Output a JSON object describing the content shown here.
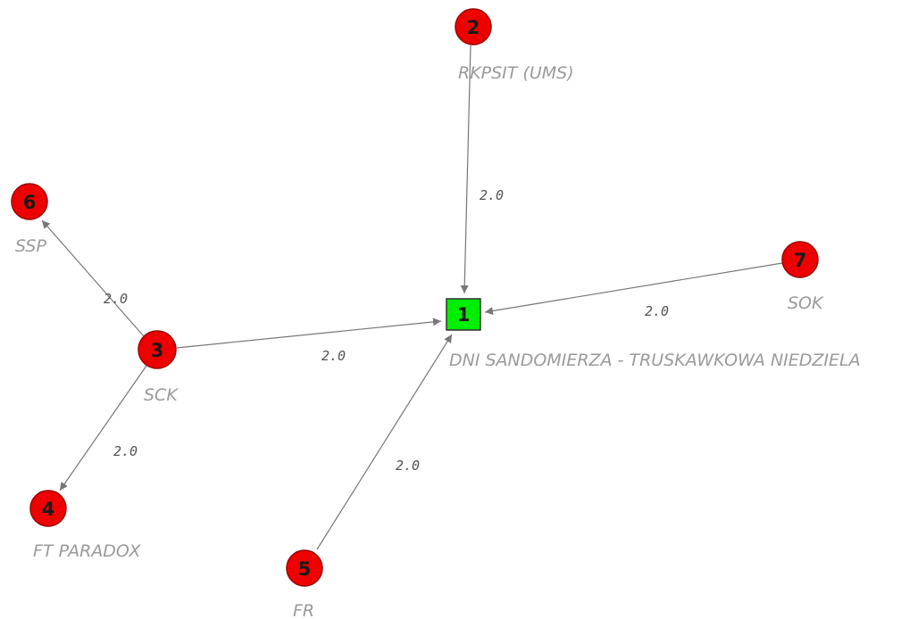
{
  "diagram": {
    "colors": {
      "source_node_fill": "#ee0000",
      "target_node_fill": "#00ee00",
      "edge": "#777777",
      "label": "#9a9a9a"
    },
    "nodes": [
      {
        "id": "1",
        "label": "DNI SANDOMIERZA - TRUSKAWKOWA NIEDZIELA",
        "shape": "square"
      },
      {
        "id": "2",
        "label": "RKPSIT (UMS)",
        "shape": "circle"
      },
      {
        "id": "3",
        "label": "SCK",
        "shape": "circle"
      },
      {
        "id": "4",
        "label": "FT PARADOX",
        "shape": "circle"
      },
      {
        "id": "5",
        "label": "FR",
        "shape": "circle"
      },
      {
        "id": "6",
        "label": "SSP",
        "shape": "circle"
      },
      {
        "id": "7",
        "label": "SOK",
        "shape": "circle"
      }
    ],
    "edges": [
      {
        "from": "2",
        "to": "1",
        "weight": "2.0"
      },
      {
        "from": "7",
        "to": "1",
        "weight": "2.0"
      },
      {
        "from": "3",
        "to": "1",
        "weight": "2.0"
      },
      {
        "from": "5",
        "to": "1",
        "weight": "2.0"
      },
      {
        "from": "3",
        "to": "6",
        "weight": "2.0"
      },
      {
        "from": "3",
        "to": "4",
        "weight": "2.0"
      }
    ]
  }
}
